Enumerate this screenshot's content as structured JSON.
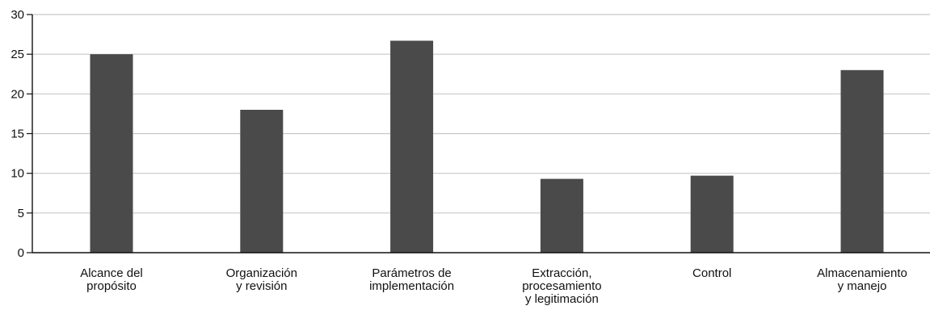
{
  "chart_data": {
    "type": "bar",
    "categories": [
      [
        "Alcance del",
        "propósito"
      ],
      [
        "Organización",
        "y revisión"
      ],
      [
        "Parámetros de",
        "implementación"
      ],
      [
        "Extracción,",
        "procesamiento",
        "y legitimación"
      ],
      [
        "Control"
      ],
      [
        "Almacenamiento",
        "y manejo"
      ]
    ],
    "values": [
      25,
      18,
      26.7,
      9.3,
      9.7,
      23
    ],
    "ylim": [
      0,
      30
    ],
    "yticks": [
      "0",
      "5",
      "10",
      "15",
      "20",
      "25",
      "30"
    ],
    "title": "",
    "xlabel": "",
    "ylabel": "",
    "grid": true,
    "colors": {
      "bar": "#4a4a4a",
      "grid": "#c8c8c8",
      "axis": "#111111"
    }
  }
}
